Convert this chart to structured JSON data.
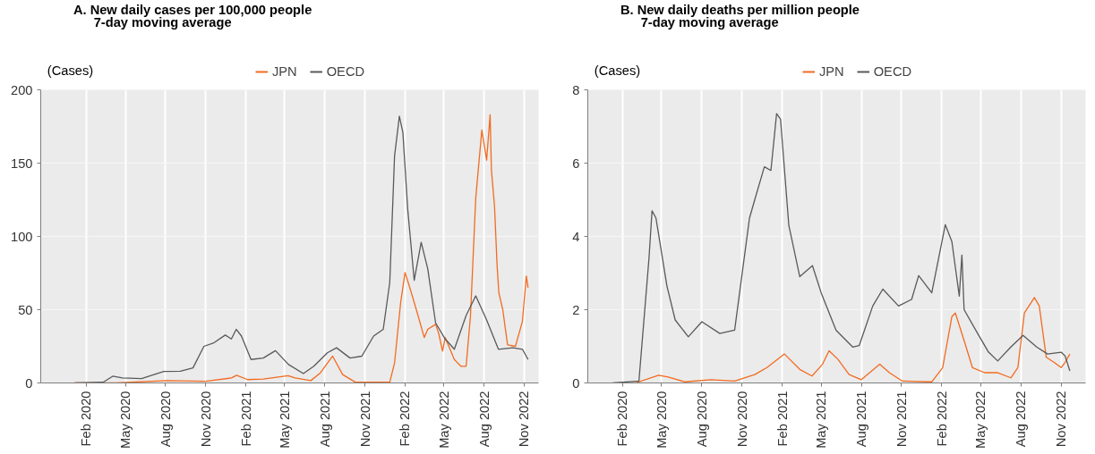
{
  "chart_data": [
    {
      "type": "line",
      "title": "A. New daily cases per 100,000 people",
      "subtitle": "7-day moving average",
      "ylabel": "(Cases)",
      "legend": "top",
      "grid": true,
      "xlim": [
        "2019-10-20",
        "2022-12-04"
      ],
      "ylim": [
        0,
        200
      ],
      "yticks": [
        0,
        50,
        100,
        150,
        200
      ],
      "xticks": [
        {
          "value": "2020-02",
          "label": "Feb 2020"
        },
        {
          "value": "2020-05",
          "label": "May 2020"
        },
        {
          "value": "2020-08",
          "label": "Aug 2020"
        },
        {
          "value": "2020-11",
          "label": "Nov 2020"
        },
        {
          "value": "2021-02",
          "label": "Feb 2021"
        },
        {
          "value": "2021-05",
          "label": "May 2021"
        },
        {
          "value": "2021-08",
          "label": "Aug 2021"
        },
        {
          "value": "2021-11",
          "label": "Nov 2021"
        },
        {
          "value": "2022-02",
          "label": "Feb 2022"
        },
        {
          "value": "2022-05",
          "label": "May 2022"
        },
        {
          "value": "2022-08",
          "label": "Aug 2022"
        },
        {
          "value": "2022-11",
          "label": "Nov 2022"
        }
      ],
      "series": [
        {
          "name": "JPN",
          "color": "#f26b21",
          "x": [
            "2020-01-06",
            "2020-04-08",
            "2020-08-04",
            "2020-11-01",
            "2020-12-30",
            "2021-01-11",
            "2021-02-05",
            "2021-03-13",
            "2021-05-09",
            "2021-05-25",
            "2021-06-30",
            "2021-07-22",
            "2021-08-19",
            "2021-09-11",
            "2021-10-10",
            "2021-12-28",
            "2022-01-08",
            "2022-01-22",
            "2022-02-01",
            "2022-02-13",
            "2022-03-03",
            "2022-03-17",
            "2022-03-25",
            "2022-04-12",
            "2022-04-19",
            "2022-04-28",
            "2022-05-04",
            "2022-05-25",
            "2022-06-09",
            "2022-06-21",
            "2022-07-01",
            "2022-07-13",
            "2022-07-27",
            "2022-08-07",
            "2022-08-15",
            "2022-08-18",
            "2022-08-25",
            "2022-08-31",
            "2022-09-04",
            "2022-09-13",
            "2022-09-24",
            "2022-10-12",
            "2022-10-28",
            "2022-11-06",
            "2022-11-10"
          ],
          "values": [
            0,
            0,
            1.6,
            1.1,
            3.4,
            5.3,
            2.3,
            2.7,
            5,
            3.4,
            1.6,
            6.9,
            18.3,
            5.7,
            0.5,
            0.5,
            13.7,
            55,
            75.4,
            64,
            45.7,
            31,
            36.6,
            40,
            34,
            21.7,
            31,
            16,
            11.4,
            11.4,
            45.7,
            126,
            172.6,
            152,
            183,
            145,
            121,
            80,
            61.7,
            50,
            26,
            25,
            42,
            73,
            65
          ]
        },
        {
          "name": "OECD",
          "color": "#595959",
          "x": [
            "2020-01-06",
            "2020-03-11",
            "2020-04-02",
            "2020-04-24",
            "2020-06-07",
            "2020-07-28",
            "2020-09-04",
            "2020-10-03",
            "2020-10-28",
            "2020-11-20",
            "2020-12-16",
            "2020-12-30",
            "2021-01-10",
            "2021-01-22",
            "2021-02-13",
            "2021-03-13",
            "2021-04-10",
            "2021-05-10",
            "2021-06-13",
            "2021-07-07",
            "2021-08-07",
            "2021-08-28",
            "2021-09-28",
            "2021-10-25",
            "2021-11-21",
            "2021-12-13",
            "2021-12-28",
            "2022-01-08",
            "2022-01-19",
            "2022-01-27",
            "2022-02-07",
            "2022-02-22",
            "2022-03-10",
            "2022-03-25",
            "2022-04-12",
            "2022-05-04",
            "2022-05-25",
            "2022-06-21",
            "2022-07-13",
            "2022-08-07",
            "2022-09-03",
            "2022-10-06",
            "2022-10-28",
            "2022-11-10"
          ],
          "values": [
            0,
            0.5,
            4.6,
            3.4,
            3,
            7.8,
            8,
            10.3,
            25,
            27.4,
            32.7,
            30,
            36.6,
            32,
            16,
            17,
            22,
            12.6,
            6.4,
            11.4,
            20.6,
            24,
            17,
            18.3,
            32,
            36.6,
            68.6,
            155,
            182,
            171,
            119,
            70,
            96,
            78,
            41,
            30,
            23,
            46,
            59.4,
            43,
            23,
            24,
            23,
            16
          ]
        }
      ]
    },
    {
      "type": "line",
      "title": "B. New daily deaths per million people",
      "subtitle": "7-day moving average",
      "ylabel": "(Cases)",
      "legend": "top",
      "grid": true,
      "xlim": [
        "2019-11-14",
        "2022-12-27"
      ],
      "ylim": [
        0,
        8
      ],
      "yticks": [
        0,
        2,
        4,
        6,
        8
      ],
      "xticks": [
        {
          "value": "2020-02",
          "label": "Feb 2020"
        },
        {
          "value": "2020-05",
          "label": "May 2020"
        },
        {
          "value": "2020-08",
          "label": "Aug 2020"
        },
        {
          "value": "2020-11",
          "label": "Nov 2020"
        },
        {
          "value": "2021-02",
          "label": "Feb 2021"
        },
        {
          "value": "2021-05",
          "label": "May 2021"
        },
        {
          "value": "2021-08",
          "label": "Aug 2021"
        },
        {
          "value": "2021-11",
          "label": "Nov 2021"
        },
        {
          "value": "2022-02",
          "label": "Feb 2022"
        },
        {
          "value": "2022-05",
          "label": "May 2022"
        },
        {
          "value": "2022-08",
          "label": "Aug 2022"
        },
        {
          "value": "2022-11",
          "label": "Nov 2022"
        }
      ],
      "series": [
        {
          "name": "JPN",
          "color": "#f26b21",
          "x": [
            "2020-03-02",
            "2020-04-24",
            "2020-05-16",
            "2020-06-23",
            "2020-08-22",
            "2020-10-15",
            "2020-11-30",
            "2020-12-28",
            "2021-02-06",
            "2021-03-13",
            "2021-04-10",
            "2021-05-04",
            "2021-05-19",
            "2021-06-08",
            "2021-07-04",
            "2021-08-01",
            "2021-09-12",
            "2021-10-04",
            "2021-11-03",
            "2022-01-09",
            "2022-02-03",
            "2022-02-24",
            "2022-03-04",
            "2022-03-24",
            "2022-04-12",
            "2022-05-10",
            "2022-06-09",
            "2022-07-09",
            "2022-07-25",
            "2022-08-09",
            "2022-09-01",
            "2022-09-12",
            "2022-09-28",
            "2022-10-16",
            "2022-11-01",
            "2022-11-10",
            "2022-11-21"
          ],
          "values": [
            0,
            0.21,
            0.16,
            0.03,
            0.09,
            0.05,
            0.23,
            0.42,
            0.79,
            0.37,
            0.19,
            0.51,
            0.88,
            0.65,
            0.23,
            0.09,
            0.51,
            0.28,
            0.05,
            0.03,
            0.42,
            1.81,
            1.91,
            1.16,
            0.42,
            0.28,
            0.28,
            0.14,
            0.42,
            1.91,
            2.33,
            2.1,
            0.7,
            0.56,
            0.42,
            0.56,
            0.79
          ]
        },
        {
          "name": "OECD",
          "color": "#595959",
          "x": [
            "2020-01-10",
            "2020-03-10",
            "2020-04-02",
            "2020-04-09",
            "2020-04-18",
            "2020-05-13",
            "2020-06-01",
            "2020-07-01",
            "2020-08-01",
            "2020-09-11",
            "2020-10-15",
            "2020-11-18",
            "2020-11-30",
            "2020-12-22",
            "2021-01-06",
            "2021-01-19",
            "2021-01-28",
            "2021-02-16",
            "2021-03-13",
            "2021-04-11",
            "2021-05-01",
            "2021-06-04",
            "2021-07-12",
            "2021-07-27",
            "2021-08-27",
            "2021-09-19",
            "2021-10-25",
            "2021-11-24",
            "2021-12-10",
            "2022-01-09",
            "2022-02-09",
            "2022-02-24",
            "2022-03-13",
            "2022-03-19",
            "2022-03-24",
            "2022-04-24",
            "2022-05-19",
            "2022-06-09",
            "2022-07-09",
            "2022-08-06",
            "2022-09-06",
            "2022-10-01",
            "2022-11-01",
            "2022-11-10",
            "2022-11-21"
          ],
          "values": [
            0,
            0.05,
            3.4,
            4.7,
            4.5,
            2.65,
            1.72,
            1.26,
            1.67,
            1.35,
            1.44,
            4.5,
            5.0,
            5.9,
            5.8,
            7.35,
            7.2,
            4.3,
            2.9,
            3.2,
            2.46,
            1.44,
            0.98,
            1.02,
            2.1,
            2.56,
            2.1,
            2.28,
            2.93,
            2.46,
            4.32,
            3.86,
            2.37,
            3.49,
            2.0,
            1.35,
            0.84,
            0.6,
            0.98,
            1.3,
            0.98,
            0.79,
            0.84,
            0.74,
            0.33
          ]
        }
      ]
    }
  ]
}
